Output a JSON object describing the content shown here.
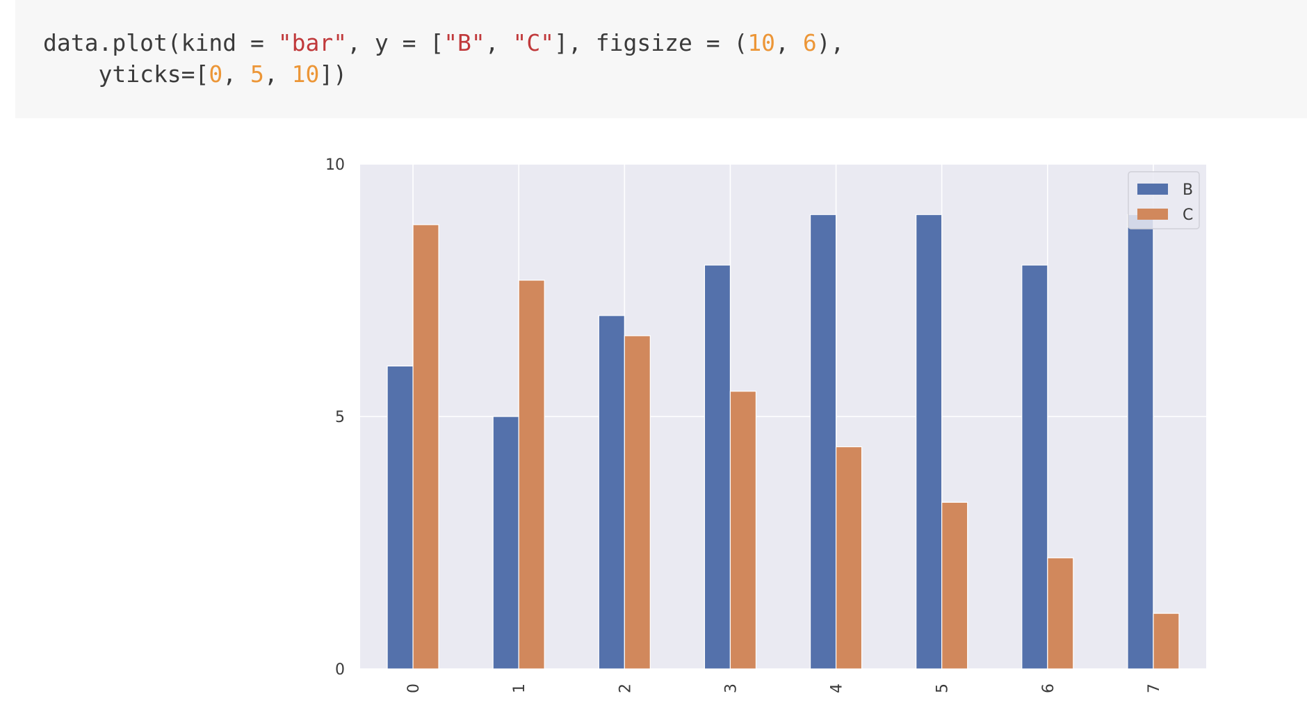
{
  "code": {
    "line1": [
      {
        "text": "data.plot(kind = ",
        "type": "plain"
      },
      {
        "text": "\"bar\"",
        "type": "str"
      },
      {
        "text": ", y = [",
        "type": "plain"
      },
      {
        "text": "\"B\"",
        "type": "str"
      },
      {
        "text": ", ",
        "type": "plain"
      },
      {
        "text": "\"C\"",
        "type": "str"
      },
      {
        "text": "], figsize = (",
        "type": "plain"
      },
      {
        "text": "10",
        "type": "num"
      },
      {
        "text": ", ",
        "type": "plain"
      },
      {
        "text": "6",
        "type": "num"
      },
      {
        "text": "),",
        "type": "plain"
      }
    ],
    "line2": [
      {
        "text": "    yticks=[",
        "type": "plain"
      },
      {
        "text": "0",
        "type": "num"
      },
      {
        "text": ", ",
        "type": "plain"
      },
      {
        "text": "5",
        "type": "num"
      },
      {
        "text": ", ",
        "type": "plain"
      },
      {
        "text": "10",
        "type": "num"
      },
      {
        "text": "])",
        "type": "plain"
      }
    ]
  },
  "chart_data": {
    "type": "bar",
    "categories": [
      "0",
      "1",
      "2",
      "3",
      "4",
      "5",
      "6",
      "7"
    ],
    "series": [
      {
        "name": "B",
        "color": "#5471ab",
        "values": [
          6,
          5,
          7,
          8,
          9,
          9,
          8,
          9
        ]
      },
      {
        "name": "C",
        "color": "#d1885c",
        "values": [
          8.8,
          7.7,
          6.6,
          5.5,
          4.4,
          3.3,
          2.2,
          1.1
        ]
      }
    ],
    "yticks": [
      "0",
      "5",
      "10"
    ],
    "ylim": [
      0,
      10
    ],
    "xtick_rotation": "vertical",
    "grid": true,
    "legend": "top-right",
    "background": "#eaeaf2"
  }
}
